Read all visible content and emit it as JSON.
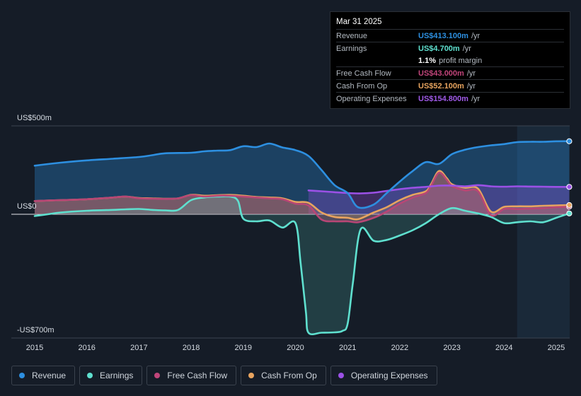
{
  "chart_data": {
    "type": "area",
    "title": "",
    "xlabel": "",
    "ylabel": "",
    "y_unit": "US$",
    "ylim": [
      -700,
      500
    ],
    "y_tick_labels": [
      {
        "value": 500,
        "label": "US$500m"
      },
      {
        "value": 0,
        "label": "US$0"
      },
      {
        "value": -700,
        "label": "-US$700m"
      }
    ],
    "x_range": [
      2014.6,
      2025.25
    ],
    "x_ticks": [
      2015,
      2016,
      2017,
      2018,
      2019,
      2020,
      2021,
      2022,
      2023,
      2024,
      2025
    ],
    "x_tick_labels": [
      "2015",
      "2016",
      "2017",
      "2018",
      "2019",
      "2020",
      "2021",
      "2022",
      "2023",
      "2024",
      "2025"
    ],
    "forecast_shade_from": 2024.25,
    "series": [
      {
        "name": "Revenue",
        "color": "#2d8fe0",
        "x": [
          2015.0,
          2015.5,
          2016.0,
          2016.5,
          2017.0,
          2017.25,
          2017.5,
          2018.0,
          2018.25,
          2018.5,
          2018.75,
          2019.0,
          2019.25,
          2019.5,
          2019.75,
          2020.0,
          2020.25,
          2020.5,
          2020.75,
          2021.0,
          2021.2,
          2021.5,
          2021.75,
          2022.0,
          2022.25,
          2022.5,
          2022.75,
          2023.0,
          2023.25,
          2023.5,
          2023.75,
          2024.0,
          2024.25,
          2024.5,
          2024.75,
          2025.0,
          2025.25
        ],
        "values": [
          275,
          292,
          305,
          314,
          324,
          334,
          345,
          348,
          356,
          360,
          363,
          385,
          380,
          400,
          378,
          363,
          330,
          250,
          165,
          120,
          40,
          55,
          120,
          185,
          245,
          295,
          285,
          340,
          365,
          380,
          390,
          397,
          408,
          410,
          410,
          413,
          413.1
        ]
      },
      {
        "name": "Earnings",
        "color": "#5fe0cf",
        "x": [
          2015.0,
          2015.25,
          2015.5,
          2016.0,
          2016.5,
          2016.75,
          2017.0,
          2017.25,
          2017.5,
          2017.75,
          2018.0,
          2018.25,
          2018.5,
          2018.75,
          2018.9,
          2019.0,
          2019.25,
          2019.5,
          2019.75,
          2020.0,
          2020.1,
          2020.2,
          2020.25,
          2020.5,
          2020.75,
          2020.9,
          2021.0,
          2021.1,
          2021.25,
          2021.5,
          2021.75,
          2022.0,
          2022.25,
          2022.5,
          2022.75,
          2023.0,
          2023.25,
          2023.5,
          2023.75,
          2024.0,
          2024.25,
          2024.5,
          2024.75,
          2025.0,
          2025.25
        ],
        "values": [
          -10,
          0,
          10,
          20,
          25,
          28,
          30,
          25,
          22,
          25,
          80,
          95,
          100,
          100,
          75,
          -25,
          -40,
          -35,
          -75,
          -50,
          -280,
          -550,
          -670,
          -670,
          -668,
          -660,
          -620,
          -390,
          -85,
          -150,
          -145,
          -120,
          -90,
          -50,
          0,
          35,
          20,
          5,
          -15,
          -50,
          -45,
          -40,
          -45,
          -20,
          4.7
        ]
      },
      {
        "name": "Free Cash Flow",
        "color": "#b84675",
        "x": [
          2015.0,
          2015.5,
          2016.0,
          2016.5,
          2016.75,
          2017.0,
          2017.25,
          2017.5,
          2017.75,
          2018.0,
          2018.25,
          2018.5,
          2018.75,
          2019.0,
          2019.25,
          2019.5,
          2019.75,
          2020.0,
          2020.25,
          2020.5,
          2020.75,
          2021.0,
          2021.2,
          2021.5,
          2021.75,
          2022.0,
          2022.25,
          2022.5,
          2022.6,
          2022.75,
          2022.9,
          2023.0,
          2023.25,
          2023.5,
          2023.75,
          2024.0,
          2024.25,
          2024.5,
          2024.75,
          2025.0,
          2025.25
        ],
        "values": [
          75,
          80,
          85,
          95,
          100,
          90,
          88,
          87,
          90,
          108,
          100,
          105,
          105,
          100,
          95,
          90,
          85,
          60,
          50,
          -30,
          -40,
          -40,
          -45,
          -20,
          15,
          60,
          95,
          120,
          160,
          235,
          195,
          160,
          135,
          130,
          -5,
          30,
          30,
          32,
          35,
          40,
          43.0
        ]
      },
      {
        "name": "Cash From Op",
        "color": "#e8a45f",
        "x": [
          2015.0,
          2015.5,
          2016.0,
          2016.5,
          2016.75,
          2017.0,
          2017.25,
          2017.5,
          2017.75,
          2018.0,
          2018.25,
          2018.5,
          2018.75,
          2019.0,
          2019.25,
          2019.5,
          2019.75,
          2020.0,
          2020.25,
          2020.5,
          2020.75,
          2021.0,
          2021.2,
          2021.5,
          2021.75,
          2022.0,
          2022.25,
          2022.5,
          2022.6,
          2022.75,
          2022.9,
          2023.0,
          2023.25,
          2023.5,
          2023.75,
          2024.0,
          2024.25,
          2024.5,
          2024.75,
          2025.0,
          2025.25
        ],
        "values": [
          75,
          80,
          85,
          95,
          100,
          92,
          90,
          88,
          90,
          110,
          105,
          108,
          110,
          105,
          98,
          95,
          90,
          70,
          65,
          10,
          -15,
          -20,
          -28,
          10,
          40,
          80,
          110,
          130,
          170,
          245,
          205,
          170,
          150,
          145,
          15,
          42,
          45,
          45,
          48,
          50,
          52.1
        ]
      },
      {
        "name": "Operating Expenses",
        "color": "#9b51e6",
        "x": [
          2020.25,
          2020.5,
          2020.75,
          2021.0,
          2021.25,
          2021.5,
          2021.75,
          2022.0,
          2022.25,
          2022.5,
          2022.75,
          2023.0,
          2023.25,
          2023.5,
          2023.75,
          2024.0,
          2024.25,
          2024.5,
          2024.75,
          2025.0,
          2025.25
        ],
        "values": [
          135,
          130,
          125,
          120,
          118,
          122,
          132,
          142,
          150,
          155,
          162,
          162,
          158,
          165,
          158,
          156,
          158,
          157,
          156,
          155,
          154.8
        ]
      }
    ]
  },
  "tooltip": {
    "date": "Mar 31 2025",
    "rows": [
      {
        "label": "Revenue",
        "value": "US$413.100m",
        "unit": "/yr",
        "color": "#2d8fe0"
      },
      {
        "label": "Earnings",
        "value": "US$4.700m",
        "unit": "/yr",
        "color": "#5fe0cf"
      },
      {
        "label": "",
        "value": "1.1%",
        "unit": "profit margin",
        "color": "#ffffff"
      },
      {
        "label": "Free Cash Flow",
        "value": "US$43.000m",
        "unit": "/yr",
        "color": "#c0457a"
      },
      {
        "label": "Cash From Op",
        "value": "US$52.100m",
        "unit": "/yr",
        "color": "#e8a45f"
      },
      {
        "label": "Operating Expenses",
        "value": "US$154.800m",
        "unit": "/yr",
        "color": "#a05ae8"
      }
    ]
  },
  "legend": {
    "items": [
      {
        "label": "Revenue",
        "color": "#2d8fe0"
      },
      {
        "label": "Earnings",
        "color": "#5fe0cf"
      },
      {
        "label": "Free Cash Flow",
        "color": "#c0457a"
      },
      {
        "label": "Cash From Op",
        "color": "#e8a45f"
      },
      {
        "label": "Operating Expenses",
        "color": "#9b51e6"
      }
    ]
  }
}
